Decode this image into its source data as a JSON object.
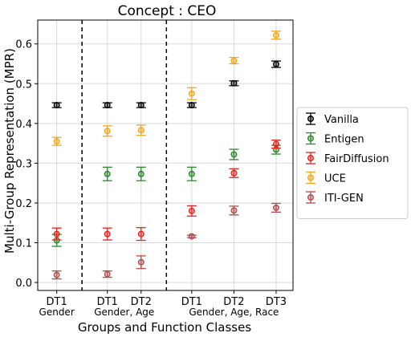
{
  "chart_data": {
    "type": "scatter",
    "title": "Concept : CEO",
    "xlabel": "Groups and Function Classes",
    "ylabel": "Multi-Group Representation (MPR)",
    "ylim": [
      -0.02,
      0.66
    ],
    "yticks": [
      0.0,
      0.1,
      0.2,
      0.3,
      0.4,
      0.5,
      0.6
    ],
    "grid": true,
    "legend_position": "right",
    "x_positions": [
      {
        "pos": 0,
        "tick": "DT1"
      },
      {
        "pos": 1.2,
        "tick": "DT1"
      },
      {
        "pos": 2.0,
        "tick": "DT2"
      },
      {
        "pos": 3.2,
        "tick": "DT1"
      },
      {
        "pos": 4.2,
        "tick": "DT2"
      },
      {
        "pos": 5.2,
        "tick": "DT3"
      }
    ],
    "xlim": [
      -0.45,
      5.6
    ],
    "group_labels": [
      {
        "center": 0,
        "text": "Gender"
      },
      {
        "center": 1.6,
        "text": "Gender, Age"
      },
      {
        "center": 4.2,
        "text": "Gender, Age, Race"
      }
    ],
    "separators": [
      0.6,
      2.6
    ],
    "series": [
      {
        "name": "Vanilla",
        "color": "#000000",
        "values": [
          0.446,
          0.446,
          0.446,
          0.446,
          0.501,
          0.549
        ],
        "errors": [
          0.006,
          0.006,
          0.006,
          0.006,
          0.006,
          0.008
        ]
      },
      {
        "name": "Entigen",
        "color": "#2a8a2a",
        "values": [
          0.106,
          0.273,
          0.273,
          0.273,
          0.322,
          0.334
        ],
        "errors": [
          0.015,
          0.017,
          0.017,
          0.017,
          0.013,
          0.011
        ]
      },
      {
        "name": "FairDiffusion",
        "color": "#e8221b",
        "values": [
          0.122,
          0.122,
          0.122,
          0.18,
          0.275,
          0.348
        ],
        "errors": [
          0.015,
          0.015,
          0.016,
          0.013,
          0.011,
          0.01
        ]
      },
      {
        "name": "UCE",
        "color": "#f5a51b",
        "values": [
          0.355,
          0.381,
          0.383,
          0.475,
          0.558,
          0.622
        ],
        "errors": [
          0.01,
          0.013,
          0.013,
          0.015,
          0.008,
          0.01
        ]
      },
      {
        "name": "ITI-GEN",
        "color": "#b34a4a",
        "values": [
          0.019,
          0.021,
          0.051,
          0.116,
          0.181,
          0.188
        ],
        "errors": [
          0.01,
          0.008,
          0.016,
          0.003,
          0.011,
          0.011
        ]
      }
    ]
  }
}
